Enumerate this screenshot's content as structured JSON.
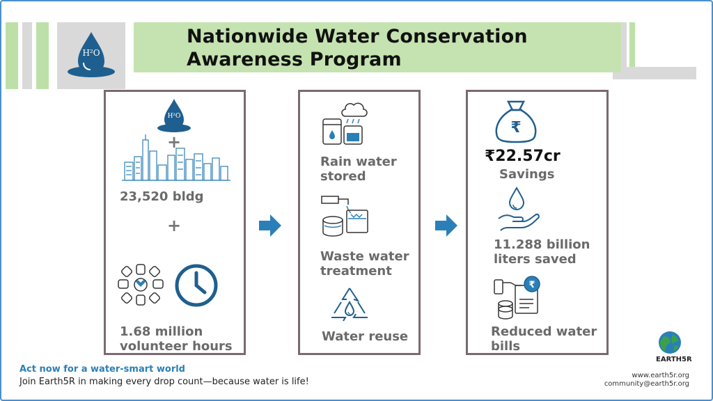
{
  "title": {
    "line1": "Nationwide Water Conservation",
    "line2": "Awareness Program"
  },
  "panel1": {
    "buildings": "23,520 bldg",
    "volunteer_line1": "1.68 million",
    "volunteer_line2": "volunteer hours",
    "plus": "+"
  },
  "panel2": {
    "rain_line1": "Rain water",
    "rain_line2": "stored",
    "waste_line1": "Waste water",
    "waste_line2": "treatment",
    "reuse": "Water reuse"
  },
  "panel3": {
    "savings_value": "₹22.57cr",
    "savings_label": "Savings",
    "liters_line1": "11.288 billion",
    "liters_line2": "liters saved",
    "bills_line1": "Reduced water",
    "bills_line2": "bills"
  },
  "footer": {
    "cta": "Act now for a water-smart world",
    "cta_sub": "Join Earth5R  in making every drop count—because water is life!",
    "brand": "EARTH5R",
    "website": "www.earth5r.org",
    "email": "community@earth5r.org"
  },
  "icons": {
    "logo": "h2o-drop-icon",
    "rain": "rain-storage-icon",
    "waste": "water-treatment-icon",
    "reuse": "recycle-drop-icon",
    "money": "money-bag-icon",
    "drop_hand": "water-drop-hand-icon",
    "bills": "bills-coins-icon",
    "clock": "clock-icon",
    "hands": "united-hands-icon",
    "city": "city-skyline-icon",
    "globe": "globe-icon"
  },
  "colors": {
    "accent_green": "#c5e3b0",
    "accent_blue": "#1f5f8f",
    "arrow_blue": "#2b7fb8",
    "panel_border": "#7a6970"
  }
}
